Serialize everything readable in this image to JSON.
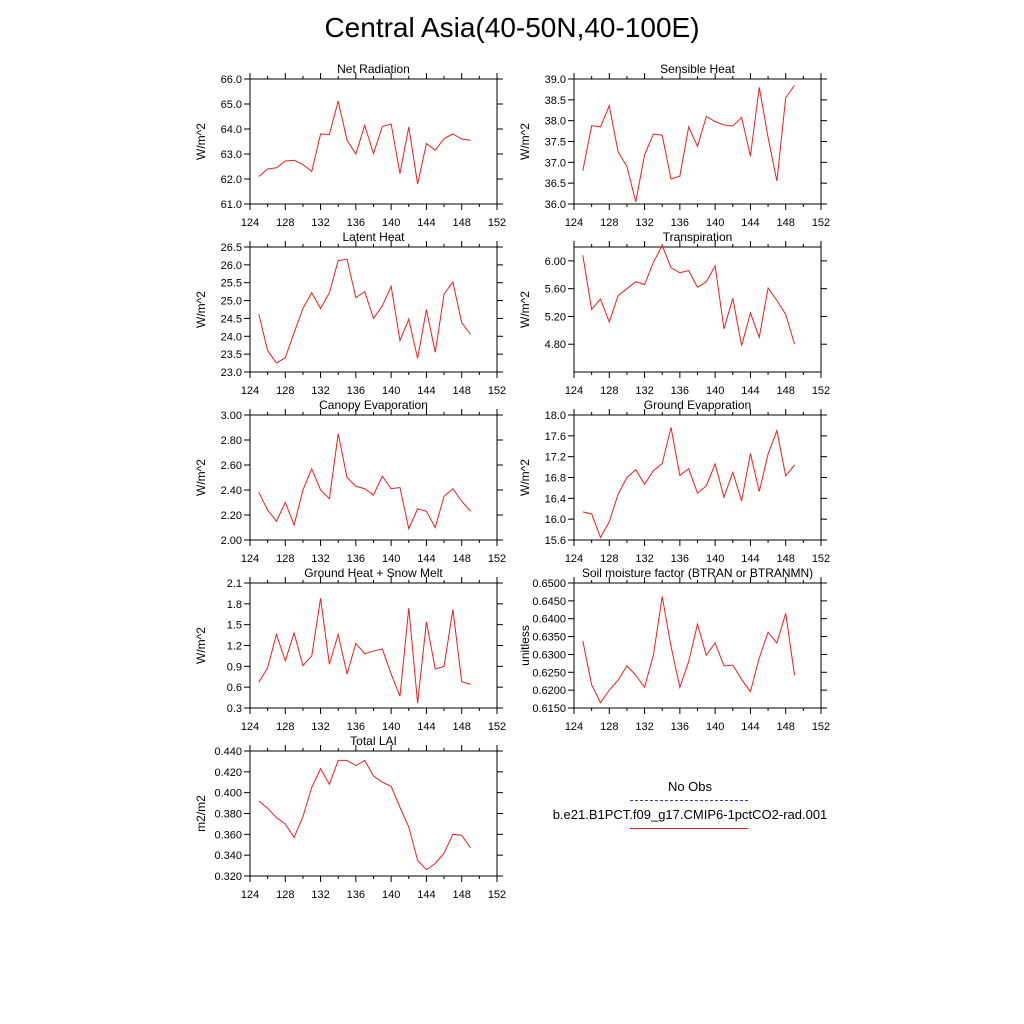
{
  "title": "Central Asia(40-50N,40-100E)",
  "legend": {
    "obs_label": "No Obs",
    "model_label": "b.e21.B1PCT.f09_g17.CMIP6-1pctCO2-rad.001",
    "obs_color": "#3b3bb0",
    "model_color": "#e62020"
  },
  "chart_data": [
    {
      "type": "line",
      "title": "Net Radiation",
      "ylabel": "W/m^2",
      "xlim": [
        124,
        152
      ],
      "ylim": [
        61.0,
        66.0
      ],
      "xticks": [
        124,
        128,
        132,
        136,
        140,
        144,
        148,
        152
      ],
      "yticks": [
        "61.0",
        "62.0",
        "63.0",
        "64.0",
        "65.0",
        "66.0"
      ],
      "x": [
        125,
        126,
        127,
        128,
        129,
        130,
        131,
        132,
        133,
        134,
        135,
        136,
        137,
        138,
        139,
        140,
        141,
        142,
        143,
        144,
        145,
        146,
        147,
        148,
        149
      ],
      "series": [
        {
          "values": [
            62.1,
            62.4,
            62.45,
            62.72,
            62.75,
            62.58,
            62.3,
            63.8,
            63.78,
            65.12,
            63.55,
            63.0,
            64.15,
            63.02,
            64.1,
            64.2,
            62.22,
            64.08,
            61.8,
            63.42,
            63.15,
            63.62,
            63.8,
            63.6,
            63.55
          ]
        }
      ]
    },
    {
      "type": "line",
      "title": "Sensible Heat",
      "ylabel": "W/m^2",
      "xlim": [
        124,
        152
      ],
      "ylim": [
        36.0,
        39.0
      ],
      "xticks": [
        124,
        128,
        132,
        136,
        140,
        144,
        148,
        152
      ],
      "yticks": [
        "36.0",
        "36.5",
        "37.0",
        "37.5",
        "38.0",
        "38.5",
        "39.0"
      ],
      "x": [
        125,
        126,
        127,
        128,
        129,
        130,
        131,
        132,
        133,
        134,
        135,
        136,
        137,
        138,
        139,
        140,
        141,
        142,
        143,
        144,
        145,
        146,
        147,
        148,
        149
      ],
      "series": [
        {
          "values": [
            36.8,
            37.88,
            37.85,
            38.36,
            37.25,
            36.9,
            36.05,
            37.18,
            37.68,
            37.65,
            36.6,
            36.67,
            37.85,
            37.38,
            38.1,
            37.98,
            37.9,
            37.87,
            38.08,
            37.15,
            38.8,
            37.6,
            36.55,
            38.55,
            38.85
          ]
        }
      ]
    },
    {
      "type": "line",
      "title": "Latent Heat",
      "ylabel": "W/m^2",
      "xlim": [
        124,
        152
      ],
      "ylim": [
        23.0,
        26.5
      ],
      "xticks": [
        124,
        128,
        132,
        136,
        140,
        144,
        148,
        152
      ],
      "yticks": [
        "23.0",
        "23.5",
        "24.0",
        "24.5",
        "25.0",
        "25.5",
        "26.0",
        "26.5"
      ],
      "x": [
        125,
        126,
        127,
        128,
        129,
        130,
        131,
        132,
        133,
        134,
        135,
        136,
        137,
        138,
        139,
        140,
        141,
        142,
        143,
        144,
        145,
        146,
        147,
        148,
        149
      ],
      "series": [
        {
          "values": [
            24.62,
            23.6,
            23.25,
            23.4,
            24.1,
            24.78,
            25.22,
            24.78,
            25.22,
            26.12,
            26.16,
            25.08,
            25.25,
            24.5,
            24.85,
            25.4,
            23.88,
            24.48,
            23.38,
            24.75,
            23.55,
            25.18,
            25.52,
            24.38,
            24.05
          ]
        }
      ]
    },
    {
      "type": "line",
      "title": "Transpiration",
      "ylabel": "W/m^2",
      "xlim": [
        124,
        152
      ],
      "ylim": [
        4.4,
        6.2
      ],
      "xticks": [
        124,
        128,
        132,
        136,
        140,
        144,
        148,
        152
      ],
      "yticks": [
        "4.80",
        "5.20",
        "5.60",
        "6.00"
      ],
      "x": [
        125,
        126,
        127,
        128,
        129,
        130,
        131,
        132,
        133,
        134,
        135,
        136,
        137,
        138,
        139,
        140,
        141,
        142,
        143,
        144,
        145,
        146,
        147,
        148,
        149
      ],
      "series": [
        {
          "values": [
            6.08,
            5.3,
            5.45,
            5.12,
            5.5,
            5.6,
            5.7,
            5.66,
            5.98,
            6.22,
            5.9,
            5.83,
            5.86,
            5.62,
            5.7,
            5.93,
            5.02,
            5.46,
            4.78,
            5.25,
            4.9,
            5.61,
            5.43,
            5.23,
            4.8
          ]
        }
      ]
    },
    {
      "type": "line",
      "title": "Canopy Evaporation",
      "ylabel": "W/m^2",
      "xlim": [
        124,
        152
      ],
      "ylim": [
        2.0,
        3.0
      ],
      "xticks": [
        124,
        128,
        132,
        136,
        140,
        144,
        148,
        152
      ],
      "yticks": [
        "2.00",
        "2.20",
        "2.40",
        "2.60",
        "2.80",
        "3.00"
      ],
      "x": [
        125,
        126,
        127,
        128,
        129,
        130,
        131,
        132,
        133,
        134,
        135,
        136,
        137,
        138,
        139,
        140,
        141,
        142,
        143,
        144,
        145,
        146,
        147,
        148,
        149
      ],
      "series": [
        {
          "values": [
            2.38,
            2.24,
            2.15,
            2.3,
            2.12,
            2.4,
            2.57,
            2.4,
            2.33,
            2.85,
            2.5,
            2.43,
            2.41,
            2.36,
            2.51,
            2.41,
            2.42,
            2.09,
            2.25,
            2.23,
            2.1,
            2.35,
            2.41,
            2.31,
            2.23
          ]
        }
      ]
    },
    {
      "type": "line",
      "title": "Ground Evaporation",
      "ylabel": "W/m^2",
      "xlim": [
        124,
        152
      ],
      "ylim": [
        15.6,
        18.0
      ],
      "xticks": [
        124,
        128,
        132,
        136,
        140,
        144,
        148,
        152
      ],
      "yticks": [
        "15.6",
        "16.0",
        "16.4",
        "16.8",
        "17.2",
        "17.6",
        "18.0"
      ],
      "x": [
        125,
        126,
        127,
        128,
        129,
        130,
        131,
        132,
        133,
        134,
        135,
        136,
        137,
        138,
        139,
        140,
        141,
        142,
        143,
        144,
        145,
        146,
        147,
        148,
        149
      ],
      "series": [
        {
          "values": [
            16.14,
            16.1,
            15.65,
            15.95,
            16.48,
            16.8,
            16.95,
            16.67,
            16.93,
            17.07,
            17.76,
            16.84,
            16.97,
            16.5,
            16.64,
            17.06,
            16.42,
            16.9,
            16.35,
            17.26,
            16.53,
            17.25,
            17.7,
            16.83,
            17.04
          ]
        }
      ]
    },
    {
      "type": "line",
      "title": "Ground Heat + Snow Melt",
      "ylabel": "W/m^2",
      "xlim": [
        124,
        152
      ],
      "ylim": [
        0.3,
        2.1
      ],
      "xticks": [
        124,
        128,
        132,
        136,
        140,
        144,
        148,
        152
      ],
      "yticks": [
        "0.3",
        "0.6",
        "0.9",
        "1.2",
        "1.5",
        "1.8",
        "2.1"
      ],
      "x": [
        125,
        126,
        127,
        128,
        129,
        130,
        131,
        132,
        133,
        134,
        135,
        136,
        137,
        138,
        139,
        140,
        141,
        142,
        143,
        144,
        145,
        146,
        147,
        148,
        149
      ],
      "series": [
        {
          "values": [
            0.67,
            0.88,
            1.36,
            0.98,
            1.38,
            0.91,
            1.05,
            1.88,
            0.93,
            1.36,
            0.79,
            1.23,
            1.08,
            1.12,
            1.15,
            0.79,
            0.47,
            1.74,
            0.37,
            1.54,
            0.86,
            0.9,
            1.72,
            0.68,
            0.64
          ]
        }
      ]
    },
    {
      "type": "line",
      "title": "Soil moisture factor (BTRAN or BTRANMN)",
      "ylabel": "unitless",
      "xlim": [
        124,
        152
      ],
      "ylim": [
        0.615,
        0.65
      ],
      "xticks": [
        124,
        128,
        132,
        136,
        140,
        144,
        148,
        152
      ],
      "yticks": [
        "0.6150",
        "0.6200",
        "0.6250",
        "0.6300",
        "0.6350",
        "0.6400",
        "0.6450",
        "0.6500"
      ],
      "x": [
        125,
        126,
        127,
        128,
        129,
        130,
        131,
        132,
        133,
        134,
        135,
        136,
        137,
        138,
        139,
        140,
        141,
        142,
        143,
        144,
        145,
        146,
        147,
        148,
        149
      ],
      "series": [
        {
          "values": [
            0.6338,
            0.6215,
            0.6165,
            0.62,
            0.6228,
            0.6268,
            0.6242,
            0.6208,
            0.6298,
            0.6462,
            0.6322,
            0.6208,
            0.628,
            0.6385,
            0.6298,
            0.6332,
            0.6268,
            0.627,
            0.623,
            0.6196,
            0.629,
            0.6362,
            0.6332,
            0.6415,
            0.6242
          ]
        }
      ]
    },
    {
      "type": "line",
      "title": "Total LAI",
      "ylabel": "m2/m2",
      "xlim": [
        124,
        152
      ],
      "ylim": [
        0.32,
        0.44
      ],
      "xticks": [
        124,
        128,
        132,
        136,
        140,
        144,
        148,
        152
      ],
      "yticks": [
        "0.320",
        "0.340",
        "0.360",
        "0.380",
        "0.400",
        "0.420",
        "0.440"
      ],
      "x": [
        125,
        126,
        127,
        128,
        129,
        130,
        131,
        132,
        133,
        134,
        135,
        136,
        137,
        138,
        139,
        140,
        141,
        142,
        143,
        144,
        145,
        146,
        147,
        148,
        149
      ],
      "series": [
        {
          "values": [
            0.392,
            0.385,
            0.376,
            0.37,
            0.357,
            0.377,
            0.405,
            0.423,
            0.408,
            0.431,
            0.431,
            0.426,
            0.431,
            0.416,
            0.41,
            0.406,
            0.386,
            0.367,
            0.335,
            0.326,
            0.332,
            0.342,
            0.36,
            0.359,
            0.347
          ]
        }
      ]
    }
  ]
}
